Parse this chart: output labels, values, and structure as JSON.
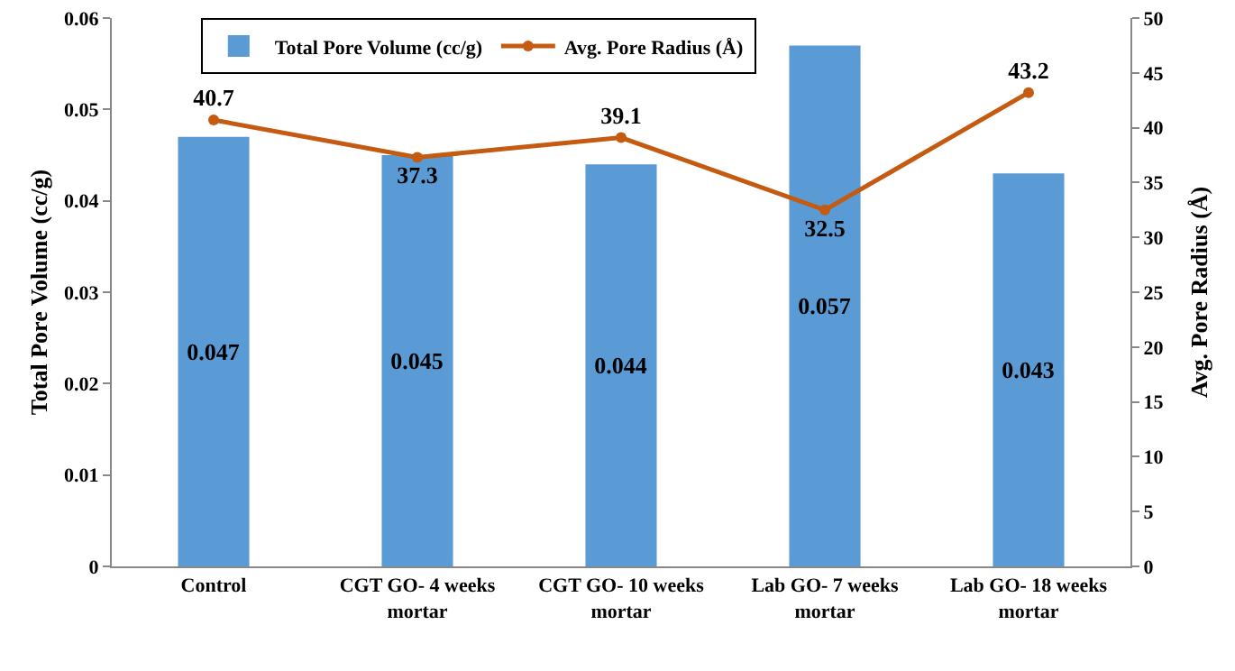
{
  "chart_data": {
    "type": "bar",
    "categories": [
      "Control",
      "CGT GO- 4 weeks mortar",
      "CGT GO- 10 weeks mortar",
      "Lab GO- 7 weeks mortar",
      "Lab GO- 18 weeks mortar"
    ],
    "ylabel": "Total Pore Volume (cc/g)",
    "y2label": "Avg. Pore Radius (Å)",
    "series": [
      {
        "name": "Total Pore Volume (cc/g)",
        "color": "#5b9bd5",
        "values": [
          0.047,
          0.045,
          0.044,
          0.057,
          0.043
        ]
      },
      {
        "name": "Avg. Pore Radius (Å)",
        "type": "line",
        "axis": "y2",
        "color": "#c55a11",
        "values": [
          40.7,
          37.3,
          39.1,
          32.5,
          43.2
        ]
      }
    ],
    "ylim": [
      0,
      0.06
    ],
    "yticks": [
      0,
      0.01,
      0.02,
      0.03,
      0.04,
      0.05,
      0.06
    ],
    "y2lim": [
      0,
      50
    ],
    "y2ticks": [
      0,
      5,
      10,
      15,
      20,
      25,
      30,
      35,
      40,
      45,
      50
    ],
    "data_labels": true,
    "grid": false,
    "legend": "top",
    "marker": "circle",
    "line_style": "solid"
  }
}
